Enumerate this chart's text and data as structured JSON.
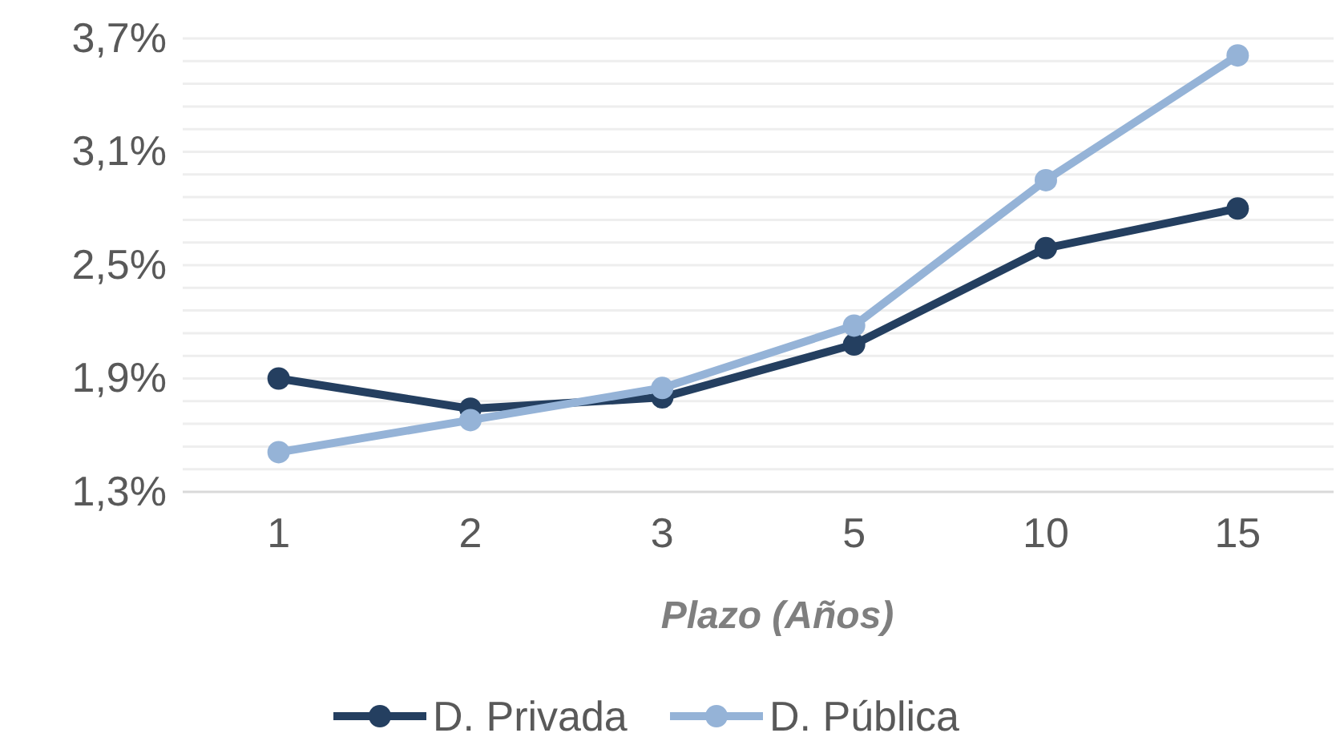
{
  "chart_data": {
    "type": "line",
    "xlabel": "Plazo (Años)",
    "categories": [
      "1",
      "2",
      "3",
      "5",
      "10",
      "15"
    ],
    "series": [
      {
        "name": "D. Privada",
        "color": "#243f60",
        "values": [
          1.9,
          1.74,
          1.8,
          2.08,
          2.59,
          2.8
        ]
      },
      {
        "name": "D. Pública",
        "color": "#95b3d7",
        "values": [
          1.51,
          1.68,
          1.85,
          2.18,
          2.95,
          3.61
        ]
      }
    ],
    "ylim": [
      1.3,
      3.7
    ],
    "yticks": [
      {
        "value": 1.3,
        "label": "1,3%"
      },
      {
        "value": 1.42,
        "label": null
      },
      {
        "value": 1.54,
        "label": null
      },
      {
        "value": 1.66,
        "label": null
      },
      {
        "value": 1.78,
        "label": null
      },
      {
        "value": 1.9,
        "label": "1,9%"
      },
      {
        "value": 2.02,
        "label": null
      },
      {
        "value": 2.14,
        "label": null
      },
      {
        "value": 2.26,
        "label": null
      },
      {
        "value": 2.38,
        "label": null
      },
      {
        "value": 2.5,
        "label": "2,5%"
      },
      {
        "value": 2.62,
        "label": null
      },
      {
        "value": 2.74,
        "label": null
      },
      {
        "value": 2.86,
        "label": null
      },
      {
        "value": 2.98,
        "label": null
      },
      {
        "value": 3.1,
        "label": "3,1%"
      },
      {
        "value": 3.22,
        "label": null
      },
      {
        "value": 3.34,
        "label": null
      },
      {
        "value": 3.46,
        "label": null
      },
      {
        "value": 3.58,
        "label": null
      },
      {
        "value": 3.7,
        "label": "3,7%"
      }
    ],
    "grid": "y",
    "legend": "bottom",
    "marker": "circle",
    "line_style": "solid"
  }
}
